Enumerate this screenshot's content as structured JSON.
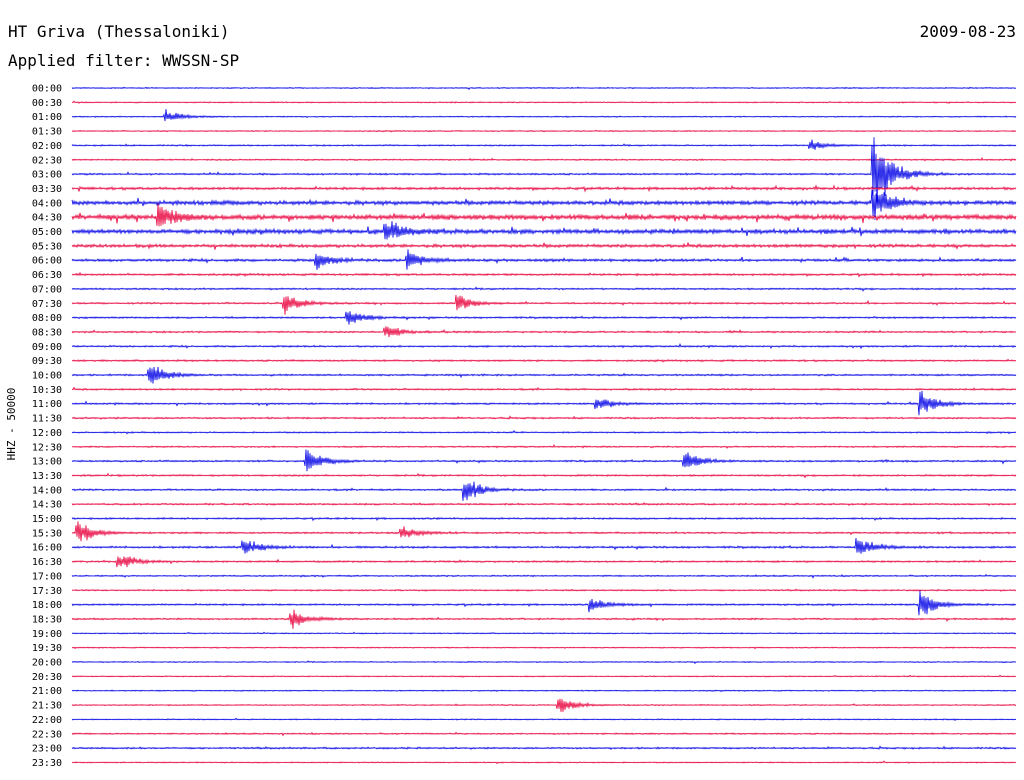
{
  "header": {
    "station": "HT Griva (Thessaloniki)",
    "date": "2009-08-23",
    "filter": "Applied filter: WWSSN-SP"
  },
  "colors": {
    "even": "#0000e6",
    "odd": "#e8003c",
    "text": "#000000"
  },
  "chart_data": {
    "type": "line",
    "title": "HT Griva (Thessaloniki)",
    "subtitle": "Applied filter: WWSSN-SP",
    "ylabel": "HHZ - 50000",
    "categories": [
      "00:00",
      "00:30",
      "01:00",
      "01:30",
      "02:00",
      "02:30",
      "03:00",
      "03:30",
      "04:00",
      "04:30",
      "05:00",
      "05:30",
      "06:00",
      "06:30",
      "07:00",
      "07:30",
      "08:00",
      "08:30",
      "09:00",
      "09:30",
      "10:00",
      "10:30",
      "11:00",
      "11:30",
      "12:00",
      "12:30",
      "13:00",
      "13:30",
      "14:00",
      "14:30",
      "15:00",
      "15:30",
      "16:00",
      "16:30",
      "17:00",
      "17:30",
      "18:00",
      "18:30",
      "19:00",
      "19:30",
      "20:00",
      "20:30",
      "21:00",
      "21:30",
      "22:00",
      "22:30",
      "23:00",
      "23:30"
    ],
    "x_domain_minutes": [
      0,
      30
    ],
    "noise_level": [
      0.2,
      0.2,
      0.2,
      0.2,
      0.25,
      0.25,
      0.3,
      0.45,
      0.7,
      0.85,
      0.75,
      0.55,
      0.45,
      0.35,
      0.3,
      0.3,
      0.3,
      0.3,
      0.3,
      0.3,
      0.3,
      0.3,
      0.3,
      0.3,
      0.25,
      0.25,
      0.3,
      0.3,
      0.3,
      0.3,
      0.3,
      0.3,
      0.35,
      0.3,
      0.25,
      0.25,
      0.3,
      0.3,
      0.2,
      0.2,
      0.2,
      0.2,
      0.2,
      0.2,
      0.2,
      0.25,
      0.3,
      0.2
    ],
    "events": [
      {
        "line": 2,
        "minute": 3.0,
        "amplitude": 8
      },
      {
        "line": 4,
        "minute": 23.5,
        "amplitude": 6
      },
      {
        "line": 6,
        "minute": 25.5,
        "amplitude": 60
      },
      {
        "line": 8,
        "minute": 25.5,
        "amplitude": 22
      },
      {
        "line": 9,
        "minute": 2.8,
        "amplitude": 14
      },
      {
        "line": 10,
        "minute": 10.0,
        "amplitude": 14
      },
      {
        "line": 12,
        "minute": 7.8,
        "amplitude": 10
      },
      {
        "line": 12,
        "minute": 10.7,
        "amplitude": 12
      },
      {
        "line": 15,
        "minute": 6.8,
        "amplitude": 12
      },
      {
        "line": 15,
        "minute": 12.3,
        "amplitude": 10
      },
      {
        "line": 16,
        "minute": 8.8,
        "amplitude": 10
      },
      {
        "line": 17,
        "minute": 10.0,
        "amplitude": 8
      },
      {
        "line": 20,
        "minute": 2.5,
        "amplitude": 14
      },
      {
        "line": 22,
        "minute": 16.7,
        "amplitude": 8
      },
      {
        "line": 22,
        "minute": 27.0,
        "amplitude": 14
      },
      {
        "line": 26,
        "minute": 7.5,
        "amplitude": 14
      },
      {
        "line": 26,
        "minute": 19.5,
        "amplitude": 14
      },
      {
        "line": 28,
        "minute": 12.5,
        "amplitude": 16
      },
      {
        "line": 31,
        "minute": 0.2,
        "amplitude": 14
      },
      {
        "line": 31,
        "minute": 10.5,
        "amplitude": 8
      },
      {
        "line": 32,
        "minute": 5.5,
        "amplitude": 10
      },
      {
        "line": 32,
        "minute": 25.0,
        "amplitude": 12
      },
      {
        "line": 33,
        "minute": 1.5,
        "amplitude": 10
      },
      {
        "line": 36,
        "minute": 16.5,
        "amplitude": 8
      },
      {
        "line": 36,
        "minute": 27.0,
        "amplitude": 14
      },
      {
        "line": 37,
        "minute": 7.0,
        "amplitude": 12
      },
      {
        "line": 43,
        "minute": 15.5,
        "amplitude": 10
      }
    ]
  }
}
